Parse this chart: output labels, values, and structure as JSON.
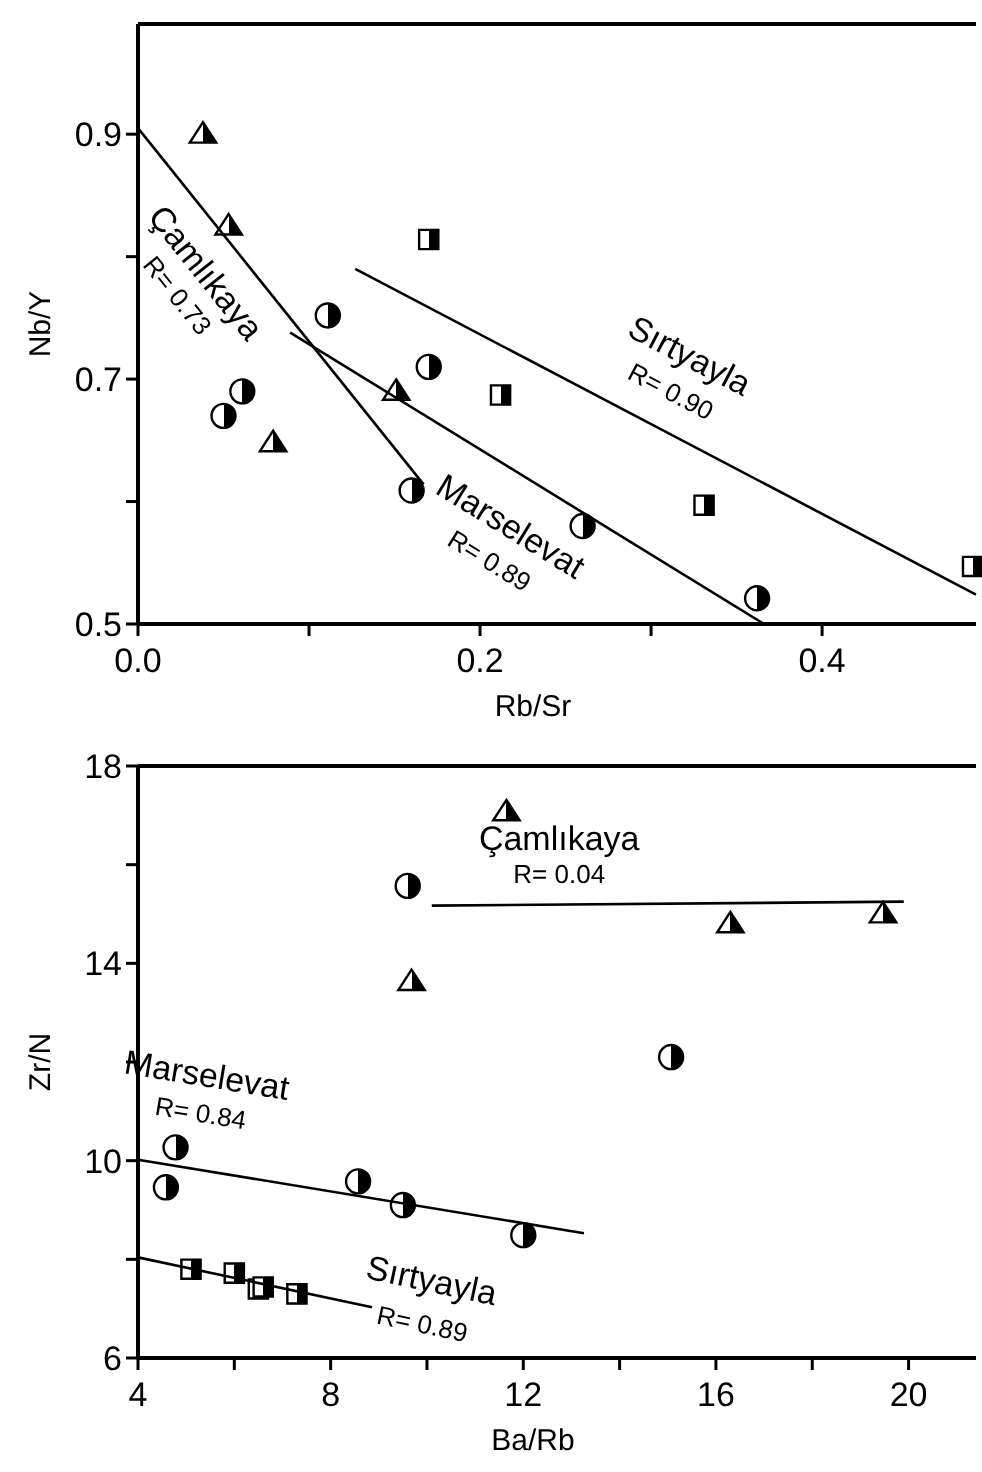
{
  "chart_data": [
    {
      "type": "scatter",
      "xlabel": "Rb/Sr",
      "ylabel": "Nb/Y",
      "xlim": [
        0,
        0.49
      ],
      "ylim": [
        0.5,
        0.99
      ],
      "xticks": [
        {
          "value": 0,
          "label": "0.0"
        },
        {
          "value": 0.1,
          "label": null
        },
        0.2,
        {
          "value": 0.3,
          "label": null
        },
        0.4
      ],
      "yticks": [
        0.5,
        {
          "value": 0.6,
          "label": null
        },
        0.7,
        {
          "value": 0.8,
          "label": null
        },
        0.9
      ],
      "grid": false,
      "series": [
        {
          "marker": "triangle",
          "color": "#000000",
          "x": [
            0.038,
            0.053,
            0.079,
            0.151
          ],
          "values": [
            0.9,
            0.825,
            0.648,
            0.69
          ]
        },
        {
          "marker": "circle",
          "color": "#000000",
          "x": [
            0.061,
            0.05,
            0.111,
            0.17,
            0.16,
            0.26,
            0.362
          ],
          "values": [
            0.69,
            0.67,
            0.752,
            0.71,
            0.609,
            0.58,
            0.521
          ]
        },
        {
          "marker": "square",
          "color": "#000000",
          "x": [
            0.17,
            0.212,
            0.331,
            0.488
          ],
          "values": [
            0.814,
            0.687,
            0.597,
            0.547
          ]
        },
        {
          "type": "line",
          "name": "Çamlıkaya",
          "color": "#000000",
          "x": [
            0,
            0.167
          ],
          "values": [
            0.905,
            0.614
          ]
        },
        {
          "type": "line",
          "name": "Marselevat",
          "color": "#000000",
          "x": [
            0.089,
            0.366
          ],
          "values": [
            0.738,
            0.5
          ]
        },
        {
          "type": "line",
          "name": "Sırtyayla",
          "color": "#000000",
          "x": [
            0.127,
            0.49
          ],
          "values": [
            0.79,
            0.524
          ]
        }
      ],
      "annotations": [
        "R= 0.73",
        "R= 0.89",
        "R= 0.90"
      ]
    },
    {
      "type": "scatter",
      "xlabel": "Ba/Rb",
      "ylabel": "Zr/N",
      "xlim": [
        4,
        21.4
      ],
      "ylim": [
        6,
        18
      ],
      "xticks": [
        4,
        {
          "value": 6,
          "label": null
        },
        8,
        {
          "value": 10,
          "label": null
        },
        12,
        {
          "value": 14,
          "label": null
        },
        16,
        {
          "value": 18,
          "label": null
        },
        20
      ],
      "yticks": [
        6,
        {
          "value": 8,
          "label": null
        },
        10,
        {
          "value": 12,
          "label": null
        },
        14,
        {
          "value": 16,
          "label": null
        },
        18
      ],
      "grid": false,
      "series": [
        {
          "marker": "triangle",
          "color": "#000000",
          "x": [
            11.65,
            9.68,
            16.3,
            19.47
          ],
          "values": [
            17.07,
            13.63,
            14.8,
            15.0
          ]
        },
        {
          "marker": "circle",
          "color": "#000000",
          "x": [
            9.6,
            15.07,
            4.78,
            4.58,
            8.57,
            9.5,
            12.0
          ],
          "values": [
            15.57,
            12.1,
            10.27,
            9.46,
            9.58,
            9.1,
            8.49
          ]
        },
        {
          "marker": "square",
          "color": "#000000",
          "x": [
            5.1,
            6.0,
            6.5,
            6.6,
            7.3
          ],
          "values": [
            7.8,
            7.72,
            7.4,
            7.44,
            7.3
          ]
        },
        {
          "type": "line",
          "name": "Çamlıkaya",
          "color": "#000000",
          "x": [
            10.1,
            19.9
          ],
          "values": [
            15.17,
            15.25
          ]
        },
        {
          "type": "line",
          "name": "Marselevat",
          "color": "#000000",
          "x": [
            4,
            13.26
          ],
          "values": [
            10.02,
            8.53
          ]
        },
        {
          "type": "line",
          "name": "Sırtyayla",
          "color": "#000000",
          "x": [
            4,
            8.86
          ],
          "values": [
            8.04,
            7.03
          ]
        }
      ],
      "annotations": [
        "R= 0.04",
        "R= 0.84",
        "R= 0.89"
      ]
    }
  ]
}
